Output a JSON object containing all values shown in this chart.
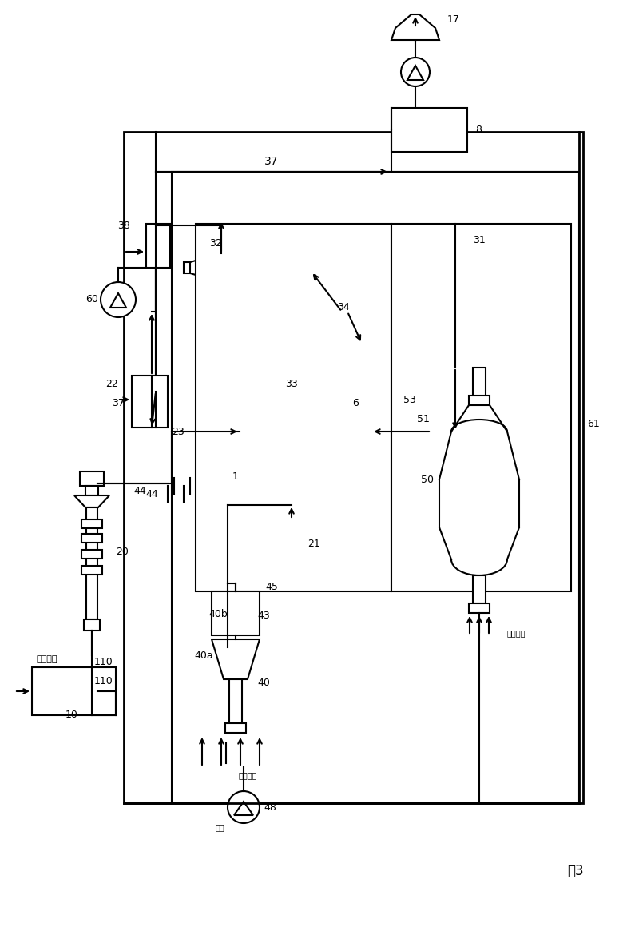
{
  "fig_label": "图3",
  "background": "#ffffff",
  "labels": {
    "sewage_sludge": "污水污泥",
    "aux_fuel": "辅助燃料",
    "steam": "蒸気"
  },
  "nums": {
    "n1": "1",
    "n6": "6",
    "n8": "8",
    "n10": "10",
    "n17": "17",
    "n20": "20",
    "n21": "21",
    "n22": "22",
    "n23": "23",
    "n31": "31",
    "n32": "32",
    "n33": "33",
    "n34": "34",
    "n37": "37",
    "n38": "38",
    "n40": "40",
    "n40a": "40a",
    "n40b": "40b",
    "n43": "43",
    "n44": "44",
    "n45": "45",
    "n48": "48",
    "n50": "50",
    "n51": "51",
    "n53": "53",
    "n60": "60",
    "n61": "61",
    "n110": "110"
  }
}
